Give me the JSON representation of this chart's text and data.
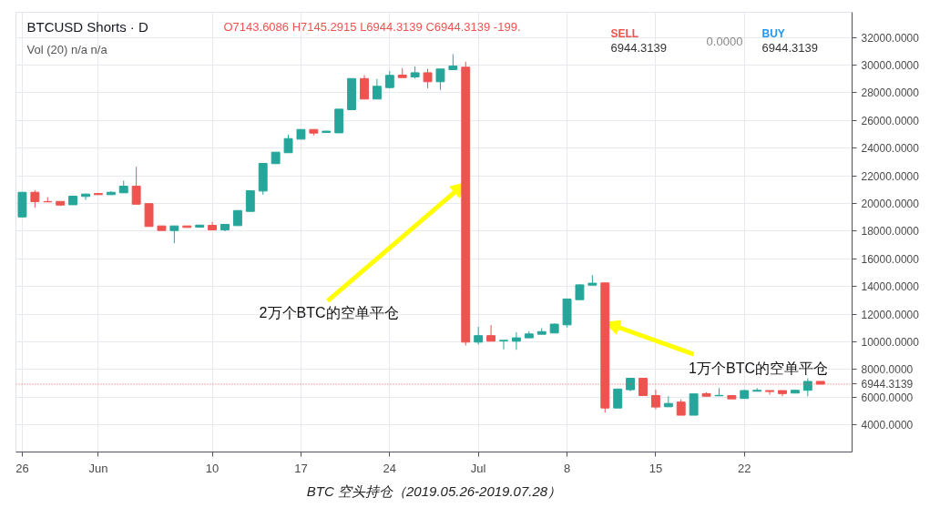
{
  "chart_data": {
    "type": "candlestick",
    "title": "BTC 空头持仓（2019.05.26-2019.07.28）",
    "subtitle": "BTCUSD Shorts · D",
    "x": [
      "2019-05-26",
      "2019-05-27",
      "2019-05-28",
      "2019-05-29",
      "2019-05-30",
      "2019-05-31",
      "2019-06-01",
      "2019-06-02",
      "2019-06-03",
      "2019-06-04",
      "2019-06-05",
      "2019-06-06",
      "2019-06-07",
      "2019-06-08",
      "2019-06-09",
      "2019-06-10",
      "2019-06-11",
      "2019-06-12",
      "2019-06-13",
      "2019-06-14",
      "2019-06-15",
      "2019-06-16",
      "2019-06-17",
      "2019-06-18",
      "2019-06-19",
      "2019-06-20",
      "2019-06-21",
      "2019-06-22",
      "2019-06-23",
      "2019-06-24",
      "2019-06-25",
      "2019-06-26",
      "2019-06-27",
      "2019-06-28",
      "2019-06-29",
      "2019-06-30",
      "2019-07-01",
      "2019-07-02",
      "2019-07-03",
      "2019-07-04",
      "2019-07-05",
      "2019-07-06",
      "2019-07-07",
      "2019-07-08",
      "2019-07-09",
      "2019-07-10",
      "2019-07-11",
      "2019-07-12",
      "2019-07-13",
      "2019-07-14",
      "2019-07-15",
      "2019-07-16",
      "2019-07-17",
      "2019-07-18",
      "2019-07-19",
      "2019-07-20",
      "2019-07-21",
      "2019-07-22",
      "2019-07-23",
      "2019-07-24",
      "2019-07-25",
      "2019-07-26",
      "2019-07-27",
      "2019-07-28"
    ],
    "ohlc": [
      [
        19030,
        20810,
        19030,
        20810
      ],
      [
        20810,
        20970,
        19690,
        20130
      ],
      [
        20140,
        20460,
        20110,
        20120
      ],
      [
        20150,
        20150,
        19820,
        19890
      ],
      [
        19910,
        20530,
        19910,
        20530
      ],
      [
        20510,
        20720,
        20260,
        20680
      ],
      [
        20720,
        20770,
        20640,
        20640
      ],
      [
        20640,
        20880,
        20640,
        20810
      ],
      [
        20770,
        21650,
        20770,
        21250
      ],
      [
        21250,
        22650,
        19950,
        19950
      ],
      [
        19990,
        19990,
        18340,
        18340
      ],
      [
        18380,
        18380,
        18050,
        18050
      ],
      [
        18050,
        18380,
        17130,
        18380
      ],
      [
        18380,
        18380,
        18270,
        18270
      ],
      [
        18290,
        18440,
        18290,
        18440
      ],
      [
        18420,
        18670,
        18090,
        18090
      ],
      [
        18090,
        18490,
        18000,
        18490
      ],
      [
        18400,
        19490,
        18400,
        19490
      ],
      [
        19430,
        20920,
        19430,
        20920
      ],
      [
        20900,
        22900,
        20640,
        22900
      ],
      [
        22880,
        23710,
        22880,
        23710
      ],
      [
        23670,
        24980,
        23670,
        24690
      ],
      [
        24650,
        25350,
        24650,
        25350
      ],
      [
        25350,
        25350,
        24920,
        25090
      ],
      [
        25130,
        25260,
        25130,
        25230
      ],
      [
        25110,
        26820,
        25110,
        26820
      ],
      [
        26780,
        29030,
        26780,
        29030
      ],
      [
        29030,
        29280,
        27550,
        27550
      ],
      [
        27550,
        29000,
        27550,
        28470
      ],
      [
        28380,
        29580,
        28310,
        29260
      ],
      [
        29280,
        29780,
        29100,
        29100
      ],
      [
        29150,
        29910,
        29020,
        29450
      ],
      [
        29450,
        29740,
        28330,
        28800
      ],
      [
        28800,
        29720,
        28220,
        29720
      ],
      [
        29670,
        30790,
        29670,
        29930
      ],
      [
        29850,
        30250,
        9740,
        9980
      ],
      [
        9980,
        11090,
        9810,
        10450
      ],
      [
        10450,
        11210,
        10050,
        10050
      ],
      [
        10070,
        10110,
        9460,
        10110
      ],
      [
        10050,
        10690,
        9430,
        10290
      ],
      [
        10290,
        10760,
        10290,
        10570
      ],
      [
        10550,
        10990,
        10550,
        10740
      ],
      [
        10640,
        11330,
        10640,
        11280
      ],
      [
        11230,
        13100,
        11050,
        13100
      ],
      [
        13050,
        14160,
        13050,
        14120
      ],
      [
        14100,
        14830,
        14100,
        14240
      ],
      [
        14260,
        14260,
        4890,
        5220
      ],
      [
        5220,
        6590,
        5220,
        6590
      ],
      [
        6540,
        7370,
        6430,
        7370
      ],
      [
        7370,
        7370,
        6120,
        6120
      ],
      [
        6120,
        6540,
        5130,
        5290
      ],
      [
        5310,
        6070,
        5310,
        5550
      ],
      [
        5650,
        5840,
        4700,
        4700
      ],
      [
        4700,
        6240,
        4700,
        6240
      ],
      [
        6260,
        6350,
        6070,
        6070
      ],
      [
        6100,
        6660,
        6100,
        6130
      ],
      [
        6120,
        6120,
        5880,
        5880
      ],
      [
        5910,
        6550,
        5910,
        6480
      ],
      [
        6430,
        6660,
        6430,
        6500
      ],
      [
        6480,
        6480,
        6190,
        6410
      ],
      [
        6480,
        6480,
        6070,
        6260
      ],
      [
        6300,
        6500,
        6300,
        6500
      ],
      [
        6500,
        7370,
        6070,
        7140
      ],
      [
        7143.6086,
        7145.2915,
        6944.3139,
        6944.3139
      ]
    ],
    "colors": [
      "#26a69a",
      "#ef5350",
      "#ef5350",
      "#ef5350",
      "#26a69a",
      "#26a69a",
      "#ef5350",
      "#26a69a",
      "#26a69a",
      "#ef5350",
      "#ef5350",
      "#ef5350",
      "#26a69a",
      "#ef5350",
      "#26a69a",
      "#ef5350",
      "#26a69a",
      "#26a69a",
      "#26a69a",
      "#26a69a",
      "#26a69a",
      "#26a69a",
      "#26a69a",
      "#ef5350",
      "#26a69a",
      "#26a69a",
      "#26a69a",
      "#ef5350",
      "#26a69a",
      "#26a69a",
      "#ef5350",
      "#26a69a",
      "#ef5350",
      "#26a69a",
      "#26a69a",
      "#ef5350",
      "#26a69a",
      "#ef5350",
      "#26a69a",
      "#26a69a",
      "#26a69a",
      "#26a69a",
      "#26a69a",
      "#26a69a",
      "#26a69a",
      "#26a69a",
      "#ef5350",
      "#26a69a",
      "#26a69a",
      "#ef5350",
      "#ef5350",
      "#26a69a",
      "#ef5350",
      "#26a69a",
      "#ef5350",
      "#26a69a",
      "#ef5350",
      "#26a69a",
      "#26a69a",
      "#ef5350",
      "#ef5350",
      "#26a69a",
      "#26a69a",
      "#ef5350"
    ],
    "xlim": [
      "2019-05-25T12:00",
      "2019-07-30T12:00"
    ],
    "xticks": [
      {
        "value": "2019-05-26",
        "label": "26"
      },
      {
        "value": "2019-06-01",
        "label": "Jun"
      },
      {
        "value": "2019-06-10",
        "label": "10"
      },
      {
        "value": "2019-06-17",
        "label": "17"
      },
      {
        "value": "2019-06-24",
        "label": "24"
      },
      {
        "value": "2019-07-01",
        "label": "Jul"
      },
      {
        "value": "2019-07-08",
        "label": "8"
      },
      {
        "value": "2019-07-15",
        "label": "15"
      },
      {
        "value": "2019-07-22",
        "label": "22"
      }
    ],
    "ylim": [
      2040,
      33820
    ],
    "yticks": [
      {
        "value": 4000,
        "label": "4000.0000"
      },
      {
        "value": 6000,
        "label": "6000.0000"
      },
      {
        "value": 8000,
        "label": "8000.0000"
      },
      {
        "value": 10000,
        "label": "10000.0000"
      },
      {
        "value": 12000,
        "label": "12000.0000"
      },
      {
        "value": 14000,
        "label": "14000.0000"
      },
      {
        "value": 16000,
        "label": "16000.0000"
      },
      {
        "value": 18000,
        "label": "18000.0000"
      },
      {
        "value": 20000,
        "label": "20000.0000"
      },
      {
        "value": 22000,
        "label": "22000.0000"
      },
      {
        "value": 24000,
        "label": "24000.0000"
      },
      {
        "value": 26000,
        "label": "26000.0000"
      },
      {
        "value": 28000,
        "label": "28000.0000"
      },
      {
        "value": 30000,
        "label": "30000.0000"
      },
      {
        "value": 32000,
        "label": "32000.0000"
      }
    ],
    "grid": true,
    "ref_lines": [
      {
        "axis": "y",
        "value": 6944.3139,
        "label": "6944.3139",
        "color": "#ef5350",
        "line_style": "dotted"
      }
    ],
    "annotations": [
      "O7143.6086  H7145.2915  L6944.3139  C6944.3139  -199.",
      "Vol (20)  n/a  n/a",
      "SELL",
      "6944.3139",
      "0.0000",
      "BUY",
      "6944.3139",
      {
        "text": "2万个BTC的空单平仓",
        "x": "2019-06-30",
        "y": 21500
      },
      {
        "text": "1万个BTC的空单平仓",
        "x": "2019-07-11",
        "y": 11400
      }
    ]
  }
}
